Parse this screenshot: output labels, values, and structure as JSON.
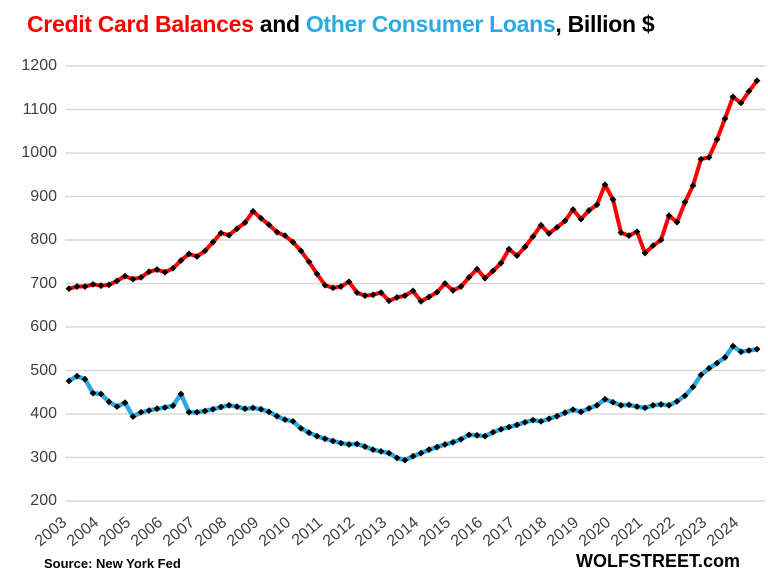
{
  "page": {
    "background": "#FFFFFF"
  },
  "title": {
    "segment_red": "Credit Card Balances",
    "segment_and": " and ",
    "segment_blue": "Other Consumer Loans",
    "segment_suffix": ", Billion $"
  },
  "footer": {
    "source": "Source: New York Fed",
    "watermark": "WOLFSTREET.com"
  },
  "colors": {
    "credit_card_line": "#FF0000",
    "other_loans_line": "#29ABE2",
    "title_red": "#FF0000",
    "title_blue": "#29ABE2",
    "marker": "#000000",
    "grid": "#D9D9D9",
    "axis_text": "#3F3F3F"
  },
  "chart_data": {
    "type": "line",
    "title": "Credit Card Balances and Other Consumer Loans, Billion $",
    "frequency": "quarterly",
    "x_start": "2003-Q1",
    "x_end": "2024-Q3",
    "x_tick_labels": [
      "2003",
      "2004",
      "2005",
      "2006",
      "2007",
      "2008",
      "2009",
      "2010",
      "2011",
      "2012",
      "2013",
      "2014",
      "2015",
      "2016",
      "2017",
      "2018",
      "2019",
      "2020",
      "2021",
      "2022",
      "2023",
      "2024"
    ],
    "ylim": [
      200,
      1200
    ],
    "y_tick_step": 100,
    "y_tick_labels": [
      "1200",
      "1100",
      "1000",
      "900",
      "800",
      "700",
      "600",
      "500",
      "400",
      "300",
      "200"
    ],
    "grid": "horizontal",
    "legend": "encoded-in-title-colors",
    "marker": {
      "shape": "diamond",
      "color": "#000000"
    },
    "series": [
      {
        "name": "Credit Card Balances",
        "color": "#FF0000",
        "values": [
          688,
          693,
          693,
          698,
          695,
          697,
          706,
          717,
          710,
          714,
          727,
          732,
          726,
          735,
          753,
          768,
          762,
          775,
          795,
          816,
          811,
          826,
          840,
          866,
          850,
          835,
          818,
          810,
          795,
          775,
          750,
          722,
          696,
          690,
          693,
          704,
          679,
          672,
          674,
          679,
          660,
          668,
          672,
          683,
          659,
          669,
          680,
          700,
          684,
          693,
          714,
          733,
          712,
          729,
          747,
          779,
          764,
          784,
          808,
          834,
          815,
          829,
          844,
          870,
          848,
          868,
          881,
          927,
          893,
          817,
          810,
          819,
          770,
          787,
          800,
          856,
          841,
          887,
          925,
          986,
          990,
          1031,
          1079,
          1129,
          1115,
          1142,
          1166
        ]
      },
      {
        "name": "Other Consumer Loans",
        "color": "#29ABE2",
        "values": [
          476,
          487,
          480,
          448,
          446,
          428,
          417,
          426,
          394,
          404,
          408,
          412,
          415,
          419,
          446,
          404,
          404,
          407,
          411,
          416,
          420,
          417,
          412,
          414,
          411,
          405,
          395,
          387,
          383,
          367,
          357,
          349,
          343,
          338,
          333,
          330,
          331,
          325,
          318,
          314,
          310,
          299,
          294,
          303,
          310,
          318,
          324,
          330,
          335,
          342,
          352,
          351,
          349,
          358,
          365,
          370,
          375,
          381,
          386,
          383,
          389,
          395,
          403,
          410,
          405,
          413,
          420,
          434,
          427,
          420,
          421,
          417,
          414,
          420,
          422,
          420,
          429,
          442,
          462,
          490,
          505,
          517,
          530,
          556,
          543,
          546,
          549
        ]
      }
    ]
  }
}
